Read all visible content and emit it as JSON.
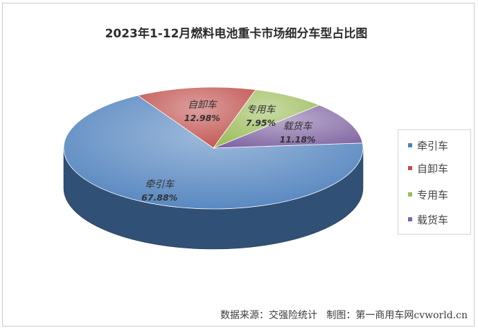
{
  "chart_data": {
    "type": "pie",
    "title": "2023年1-12月燃料电池重卡市场细分车型占比图",
    "slices": [
      {
        "label": "牵引车",
        "value": 67.88,
        "value_label": "67.88%",
        "color": "#4f81bd"
      },
      {
        "label": "自卸车",
        "value": 12.98,
        "value_label": "12.98%",
        "color": "#c0504d"
      },
      {
        "label": "专用车",
        "value": 7.95,
        "value_label": "7.95%",
        "color": "#9bbb59"
      },
      {
        "label": "载货车",
        "value": 11.18,
        "value_label": "11.18%",
        "color": "#8064a2"
      }
    ],
    "legend_position": "right",
    "style": "3d"
  },
  "footer": {
    "source_text": "数据来源：交强险统计",
    "credit_text": "制图：第一商用车网cvworld.cn"
  }
}
